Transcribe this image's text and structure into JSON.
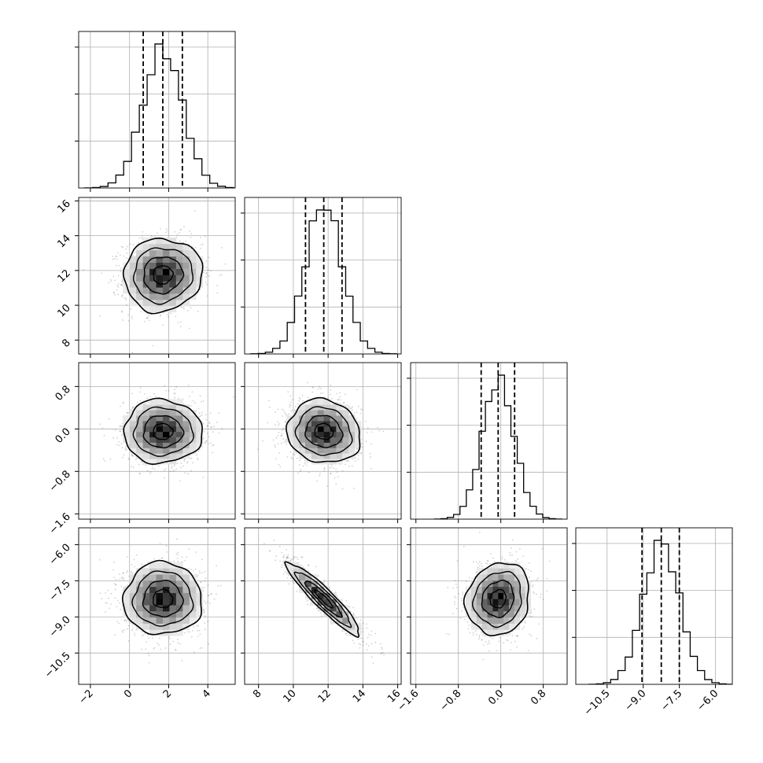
{
  "chart_data": {
    "type": "corner",
    "description_free": true,
    "parameters": [
      {
        "range": [
          -2.6,
          5.4
        ],
        "ticks": [
          -2,
          0,
          2,
          4
        ],
        "tick_labels": [
          "−2",
          "0",
          "2",
          "4"
        ],
        "mean": 1.7,
        "sd": 1.0,
        "quantiles": [
          0.7,
          1.7,
          2.7
        ]
      },
      {
        "range": [
          7.2,
          16.2
        ],
        "ticks": [
          8,
          10,
          12,
          14,
          16
        ],
        "tick_labels": [
          "8",
          "10",
          "12",
          "14",
          "16"
        ],
        "mean": 11.75,
        "sd": 1.05,
        "quantiles": [
          10.7,
          11.75,
          12.8
        ]
      },
      {
        "range": [
          -1.7,
          1.25
        ],
        "ticks": [
          -1.6,
          -0.8,
          0.0,
          0.8
        ],
        "tick_labels": [
          "−1.6",
          "−0.8",
          "0.0",
          "0.8"
        ],
        "mean": -0.05,
        "sd": 0.3,
        "quantiles": [
          -0.37,
          -0.05,
          0.26
        ]
      },
      {
        "range": [
          -11.8,
          -5.3
        ],
        "ticks": [
          -10.5,
          -9.0,
          -7.5,
          -6.0
        ],
        "tick_labels": [
          "−10.5",
          "−9.0",
          "−7.5",
          "−6.0"
        ],
        "mean": -8.25,
        "sd": 0.75,
        "quantiles": [
          -9.05,
          -8.25,
          -7.5
        ]
      }
    ],
    "correlations": [
      {
        "pair": [
          0,
          1
        ],
        "rho": 0.05
      },
      {
        "pair": [
          0,
          2
        ],
        "rho": 0.0
      },
      {
        "pair": [
          0,
          3
        ],
        "rho": 0.0
      },
      {
        "pair": [
          1,
          2
        ],
        "rho": -0.1
      },
      {
        "pair": [
          1,
          3
        ],
        "rho": -0.93
      },
      {
        "pair": [
          2,
          3
        ],
        "rho": 0.12
      }
    ],
    "histogram_bins": 20,
    "grid": true,
    "quantile_line_style": "dashed",
    "colors": {
      "line": "#000000",
      "grid": "#b0b0b0",
      "scatter": "#000000"
    }
  }
}
